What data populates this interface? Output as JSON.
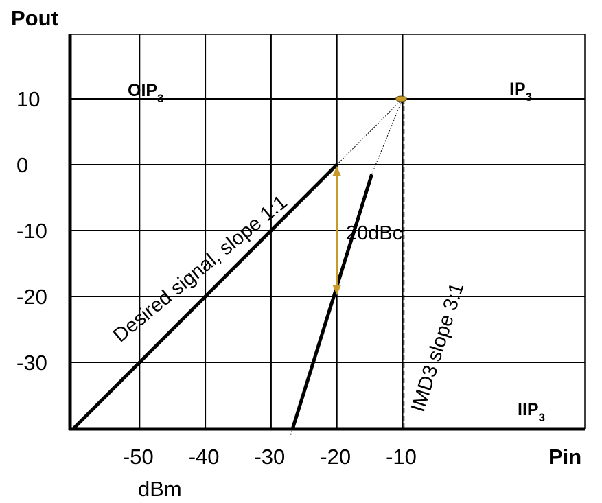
{
  "chart_data": {
    "type": "line",
    "title": "",
    "ylabel": "Pout",
    "xlabel": "Pin",
    "x_unit": "dBm",
    "xlim": [
      -60,
      -5
    ],
    "ylim": [
      -40,
      20
    ],
    "x_ticks": [
      -50,
      -40,
      -30,
      -20,
      -10
    ],
    "x_tick_labels": [
      "-50",
      "-40",
      "-30",
      "-20",
      "-10"
    ],
    "y_ticks": [
      10,
      0,
      -10,
      -20,
      -30
    ],
    "y_tick_labels": [
      "10",
      "0",
      "-10",
      "-20",
      "-30"
    ],
    "grid": true,
    "series": [
      {
        "name": "Desired signal,  slope 1:1",
        "color": "#000000",
        "x": [
          -60,
          -20
        ],
        "y": [
          -40,
          0
        ]
      },
      {
        "name": "IMD3  slope 3:1",
        "color": "#000000",
        "x": [
          -26.7,
          -14.7
        ],
        "y": [
          -40,
          -1.5
        ]
      }
    ],
    "extrapolations": [
      {
        "x": [
          -20,
          -10
        ],
        "y": [
          0,
          10
        ]
      },
      {
        "x": [
          -14.7,
          -10
        ],
        "y": [
          -1.5,
          10
        ]
      },
      {
        "x": [
          -27,
          -26.7
        ],
        "y": [
          -41,
          -40
        ]
      }
    ],
    "intercept_point": {
      "x": -10,
      "y": 10,
      "color": "#c89a28"
    },
    "reference_lines": {
      "oip3_y": 10,
      "iip3_x": -10
    },
    "annotations": {
      "oip3": {
        "main": "OIP",
        "sub": "3"
      },
      "ip3": {
        "main": "IP",
        "sub": "3"
      },
      "iip3": {
        "main": "IIP",
        "sub": "3"
      },
      "dbc": {
        "text": "20dBc",
        "x": -20,
        "y_from": 0,
        "y_to": -20,
        "color": "#c89a28"
      }
    }
  }
}
